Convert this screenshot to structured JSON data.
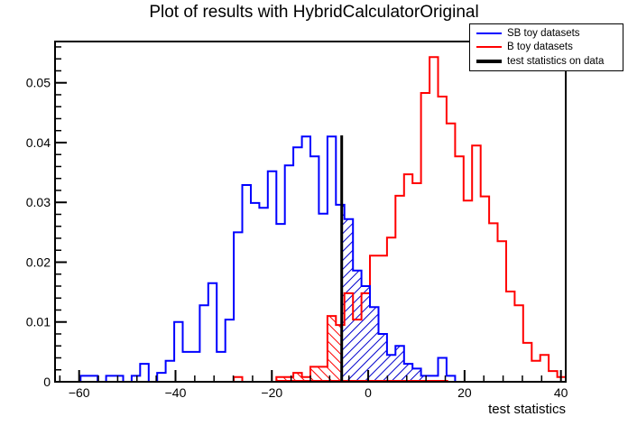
{
  "title": "Plot of results with HybridCalculatorOriginal",
  "axes": {
    "x": {
      "label": "test statistics",
      "min": -65,
      "max": 41,
      "major_ticks": [
        {
          "v": -60,
          "label": "−60"
        },
        {
          "v": -40,
          "label": "−40"
        },
        {
          "v": -20,
          "label": "−20"
        },
        {
          "v": 0,
          "label": "0"
        },
        {
          "v": 20,
          "label": "20"
        },
        {
          "v": 40,
          "label": "40"
        }
      ],
      "minor_tick_step": 4
    },
    "y": {
      "min": 0,
      "max": 0.0569,
      "major_ticks": [
        {
          "v": 0,
          "label": "0"
        },
        {
          "v": 0.01,
          "label": "0.01"
        },
        {
          "v": 0.02,
          "label": "0.02"
        },
        {
          "v": 0.03,
          "label": "0.03"
        },
        {
          "v": 0.04,
          "label": "0.04"
        },
        {
          "v": 0.05,
          "label": "0.05"
        }
      ],
      "minor_tick_step": 0.002
    }
  },
  "legend": {
    "items": [
      {
        "label": "SB toy datasets",
        "color": "#0000ff",
        "line_width": 2
      },
      {
        "label": "B toy datasets",
        "color": "#ff0000",
        "line_width": 2
      },
      {
        "label": "test statistics on data",
        "color": "#000000",
        "line_width": 4
      }
    ]
  },
  "chart_data": {
    "type": "bar",
    "subtype": "overlaid-step-histograms",
    "title": "Plot of results with HybridCalculatorOriginal",
    "xlabel": "test statistics",
    "ylabel": "",
    "xlim": [
      -65,
      41
    ],
    "ylim": [
      0,
      0.0569
    ],
    "bin_start": -65,
    "bin_width": 1.7667,
    "n_bins": 60,
    "series": [
      {
        "name": "SB toy datasets",
        "color": "#0000ff",
        "values": [
          0,
          0,
          0,
          0.001,
          0.001,
          0,
          0.001,
          0.001,
          0,
          0.001,
          0.003,
          0,
          0.0015,
          0.0035,
          0.01,
          0.005,
          0.005,
          0.0128,
          0.0165,
          0.005,
          0.0104,
          0.025,
          0.0329,
          0.0299,
          0.0291,
          0.0352,
          0.0264,
          0.0362,
          0.0392,
          0.041,
          0.0377,
          0.0281,
          0.041,
          0.0296,
          0.0272,
          0.0186,
          0.016,
          0.0125,
          0.008,
          0.0045,
          0.006,
          0.003,
          0.0022,
          0.001,
          0.001,
          0.004,
          0.001,
          0,
          0,
          0,
          0,
          0,
          0,
          0,
          0,
          0,
          0,
          0,
          0,
          0
        ]
      },
      {
        "name": "B toy datasets",
        "color": "#ff0000",
        "values": [
          0,
          0,
          0,
          0,
          0,
          0,
          0,
          0,
          0,
          0,
          0,
          0,
          0,
          0,
          0,
          0,
          0,
          0,
          0,
          0,
          0,
          0.0008,
          0,
          0,
          0,
          0,
          0.0008,
          0.0008,
          0.0015,
          0.0008,
          0.0025,
          0.0025,
          0.011,
          0.0095,
          0.0148,
          0.0104,
          0.0148,
          0.0211,
          0.0211,
          0.0241,
          0.0311,
          0.0347,
          0.0332,
          0.0483,
          0.0543,
          0.0477,
          0.0432,
          0.0377,
          0.0303,
          0.0395,
          0.031,
          0.0265,
          0.0235,
          0.0151,
          0.0128,
          0.0065,
          0.0035,
          0.0045,
          0.0018,
          0.0008
        ]
      }
    ],
    "test_statistic_on_data": {
      "x": -5.5,
      "top": 0.0412,
      "color": "#000000",
      "line_width": 3
    },
    "shaded_regions": [
      {
        "series": "SB toy datasets",
        "from_x": -5.5,
        "to_x": 12.3,
        "hatch_dir": "/",
        "color": "#0000cd"
      },
      {
        "series": "B toy datasets",
        "from_x": -19.1,
        "to_x": -5.5,
        "hatch_dir": "\\",
        "color": "#ff0000"
      }
    ],
    "baseline_overlay": {
      "color": "#ff0000",
      "from_x": -19.1,
      "to_x": 16.6
    },
    "legend_position": "top-right",
    "grid": false
  }
}
